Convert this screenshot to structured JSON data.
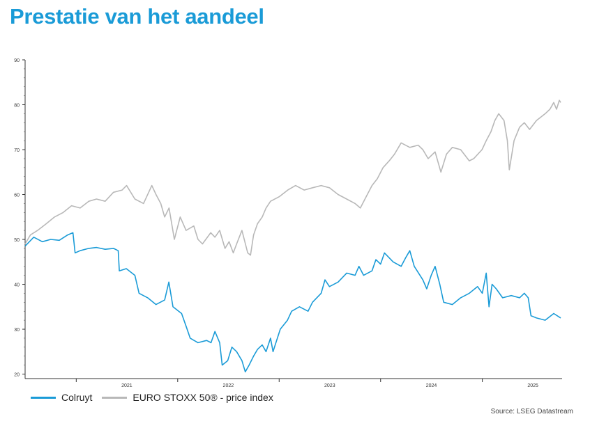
{
  "title": "Prestatie van het aandeel",
  "source": "Source: LSEG Datastream",
  "chart_data": {
    "type": "line",
    "ylim": [
      19,
      90
    ],
    "yticks": [
      20,
      30,
      40,
      50,
      60,
      70,
      80,
      90
    ],
    "xlim": [
      "2020-07-01",
      "2025-10-15"
    ],
    "xticks": [
      "2021",
      "2022",
      "2023",
      "2024",
      "2025"
    ],
    "grid": false,
    "legend": "bottom",
    "series": [
      {
        "name": "Colruyt",
        "color": "#1a9bd7",
        "points": [
          [
            "2020-07-01",
            48.5
          ],
          [
            "2020-08-01",
            50.5
          ],
          [
            "2020-09-01",
            49.5
          ],
          [
            "2020-10-01",
            50.0
          ],
          [
            "2020-11-01",
            49.8
          ],
          [
            "2020-12-01",
            51.0
          ],
          [
            "2020-12-20",
            51.5
          ],
          [
            "2020-12-28",
            47.0
          ],
          [
            "2021-01-15",
            47.5
          ],
          [
            "2021-02-15",
            48.0
          ],
          [
            "2021-03-15",
            48.2
          ],
          [
            "2021-04-15",
            47.8
          ],
          [
            "2021-05-15",
            48.0
          ],
          [
            "2021-06-01",
            47.5
          ],
          [
            "2021-06-05",
            43.0
          ],
          [
            "2021-06-30",
            43.5
          ],
          [
            "2021-07-31",
            42.0
          ],
          [
            "2021-08-15",
            38.0
          ],
          [
            "2021-09-15",
            37.0
          ],
          [
            "2021-10-15",
            35.5
          ],
          [
            "2021-11-15",
            36.5
          ],
          [
            "2021-11-30",
            40.5
          ],
          [
            "2021-12-15",
            35.0
          ],
          [
            "2022-01-15",
            33.5
          ],
          [
            "2022-02-01",
            30.5
          ],
          [
            "2022-02-15",
            28.0
          ],
          [
            "2022-03-15",
            27.0
          ],
          [
            "2022-04-15",
            27.5
          ],
          [
            "2022-05-01",
            27.0
          ],
          [
            "2022-05-15",
            29.5
          ],
          [
            "2022-06-01",
            27.0
          ],
          [
            "2022-06-10",
            22.0
          ],
          [
            "2022-06-30",
            23.0
          ],
          [
            "2022-07-15",
            26.0
          ],
          [
            "2022-08-01",
            25.0
          ],
          [
            "2022-08-20",
            23.0
          ],
          [
            "2022-09-01",
            20.5
          ],
          [
            "2022-09-15",
            22.0
          ],
          [
            "2022-10-01",
            24.0
          ],
          [
            "2022-10-15",
            25.5
          ],
          [
            "2022-11-01",
            26.5
          ],
          [
            "2022-11-15",
            25.0
          ],
          [
            "2022-12-01",
            28.0
          ],
          [
            "2022-12-10",
            25.0
          ],
          [
            "2023-01-05",
            30.0
          ],
          [
            "2023-01-31",
            32.0
          ],
          [
            "2023-02-15",
            34.0
          ],
          [
            "2023-03-15",
            35.0
          ],
          [
            "2023-04-15",
            34.0
          ],
          [
            "2023-05-01",
            36.0
          ],
          [
            "2023-06-01",
            38.0
          ],
          [
            "2023-06-15",
            41.0
          ],
          [
            "2023-07-01",
            39.5
          ],
          [
            "2023-08-01",
            40.5
          ],
          [
            "2023-09-01",
            42.5
          ],
          [
            "2023-10-01",
            42.0
          ],
          [
            "2023-10-15",
            44.0
          ],
          [
            "2023-11-01",
            42.0
          ],
          [
            "2023-12-01",
            43.0
          ],
          [
            "2023-12-15",
            45.5
          ],
          [
            "2024-01-01",
            44.5
          ],
          [
            "2024-01-15",
            47.0
          ],
          [
            "2024-02-15",
            45.0
          ],
          [
            "2024-03-15",
            44.0
          ],
          [
            "2024-04-01",
            46.0
          ],
          [
            "2024-04-15",
            47.5
          ],
          [
            "2024-05-01",
            44.0
          ],
          [
            "2024-06-01",
            41.0
          ],
          [
            "2024-06-15",
            39.0
          ],
          [
            "2024-07-01",
            42.0
          ],
          [
            "2024-07-15",
            44.0
          ],
          [
            "2024-08-01",
            40.0
          ],
          [
            "2024-08-15",
            36.0
          ],
          [
            "2024-09-15",
            35.5
          ],
          [
            "2024-10-15",
            37.0
          ],
          [
            "2024-11-15",
            38.0
          ],
          [
            "2024-12-15",
            39.5
          ],
          [
            "2025-01-01",
            38.0
          ],
          [
            "2025-01-15",
            42.5
          ],
          [
            "2025-01-25",
            35.0
          ],
          [
            "2025-02-05",
            40.0
          ],
          [
            "2025-02-20",
            39.0
          ],
          [
            "2025-03-15",
            37.0
          ],
          [
            "2025-04-15",
            37.5
          ],
          [
            "2025-05-15",
            37.0
          ],
          [
            "2025-06-01",
            38.0
          ],
          [
            "2025-06-15",
            37.0
          ],
          [
            "2025-06-25",
            33.0
          ],
          [
            "2025-07-15",
            32.5
          ],
          [
            "2025-08-15",
            32.0
          ],
          [
            "2025-09-15",
            33.5
          ],
          [
            "2025-10-10",
            32.5
          ]
        ]
      },
      {
        "name": "EURO STOXX 50® - price index",
        "color": "#b8b8b8",
        "points": [
          [
            "2020-07-01",
            49.0
          ],
          [
            "2020-07-20",
            51.0
          ],
          [
            "2020-08-15",
            52.0
          ],
          [
            "2020-09-15",
            53.5
          ],
          [
            "2020-10-15",
            55.0
          ],
          [
            "2020-11-15",
            56.0
          ],
          [
            "2020-12-15",
            57.5
          ],
          [
            "2021-01-15",
            57.0
          ],
          [
            "2021-02-15",
            58.5
          ],
          [
            "2021-03-15",
            59.0
          ],
          [
            "2021-04-15",
            58.5
          ],
          [
            "2021-05-15",
            60.5
          ],
          [
            "2021-06-15",
            61.0
          ],
          [
            "2021-07-01",
            62.0
          ],
          [
            "2021-07-31",
            59.0
          ],
          [
            "2021-08-31",
            58.0
          ],
          [
            "2021-09-30",
            62.0
          ],
          [
            "2021-10-15",
            60.0
          ],
          [
            "2021-11-01",
            58.0
          ],
          [
            "2021-11-15",
            55.0
          ],
          [
            "2021-12-01",
            57.0
          ],
          [
            "2021-12-20",
            50.0
          ],
          [
            "2022-01-10",
            55.0
          ],
          [
            "2022-01-31",
            52.0
          ],
          [
            "2022-02-28",
            53.0
          ],
          [
            "2022-03-15",
            50.0
          ],
          [
            "2022-03-31",
            49.0
          ],
          [
            "2022-04-30",
            51.5
          ],
          [
            "2022-05-15",
            50.5
          ],
          [
            "2022-06-01",
            52.0
          ],
          [
            "2022-06-20",
            48.0
          ],
          [
            "2022-07-05",
            49.5
          ],
          [
            "2022-07-20",
            47.0
          ],
          [
            "2022-08-01",
            49.0
          ],
          [
            "2022-08-20",
            52.0
          ],
          [
            "2022-09-10",
            47.0
          ],
          [
            "2022-09-20",
            46.5
          ],
          [
            "2022-10-01",
            51.0
          ],
          [
            "2022-10-15",
            53.5
          ],
          [
            "2022-11-01",
            55.0
          ],
          [
            "2022-11-15",
            57.0
          ],
          [
            "2022-12-01",
            58.5
          ],
          [
            "2023-01-01",
            59.5
          ],
          [
            "2023-02-01",
            61.0
          ],
          [
            "2023-03-01",
            62.0
          ],
          [
            "2023-04-01",
            61.0
          ],
          [
            "2023-05-01",
            61.5
          ],
          [
            "2023-06-01",
            62.0
          ],
          [
            "2023-07-01",
            61.5
          ],
          [
            "2023-08-01",
            60.0
          ],
          [
            "2023-09-01",
            59.0
          ],
          [
            "2023-10-01",
            58.0
          ],
          [
            "2023-10-20",
            57.0
          ],
          [
            "2023-11-10",
            59.5
          ],
          [
            "2023-12-01",
            62.0
          ],
          [
            "2023-12-20",
            63.5
          ],
          [
            "2024-01-10",
            66.0
          ],
          [
            "2024-02-01",
            67.5
          ],
          [
            "2024-02-20",
            69.0
          ],
          [
            "2024-03-15",
            71.5
          ],
          [
            "2024-04-15",
            70.5
          ],
          [
            "2024-05-15",
            71.0
          ],
          [
            "2024-06-01",
            70.0
          ],
          [
            "2024-06-20",
            68.0
          ],
          [
            "2024-07-15",
            69.5
          ],
          [
            "2024-08-05",
            65.0
          ],
          [
            "2024-08-25",
            69.0
          ],
          [
            "2024-09-15",
            70.5
          ],
          [
            "2024-10-15",
            70.0
          ],
          [
            "2024-11-15",
            67.5
          ],
          [
            "2024-12-01",
            68.0
          ],
          [
            "2024-12-31",
            70.0
          ],
          [
            "2025-01-15",
            72.0
          ],
          [
            "2025-02-01",
            74.0
          ],
          [
            "2025-02-15",
            76.5
          ],
          [
            "2025-03-01",
            78.0
          ],
          [
            "2025-03-20",
            76.5
          ],
          [
            "2025-04-01",
            72.0
          ],
          [
            "2025-04-08",
            65.5
          ],
          [
            "2025-04-25",
            72.0
          ],
          [
            "2025-05-15",
            75.0
          ],
          [
            "2025-06-01",
            76.0
          ],
          [
            "2025-06-20",
            74.5
          ],
          [
            "2025-07-15",
            76.5
          ],
          [
            "2025-08-15",
            78.0
          ],
          [
            "2025-09-01",
            79.0
          ],
          [
            "2025-09-15",
            80.5
          ],
          [
            "2025-09-25",
            79.0
          ],
          [
            "2025-10-05",
            81.0
          ],
          [
            "2025-10-10",
            80.5
          ]
        ]
      }
    ]
  }
}
